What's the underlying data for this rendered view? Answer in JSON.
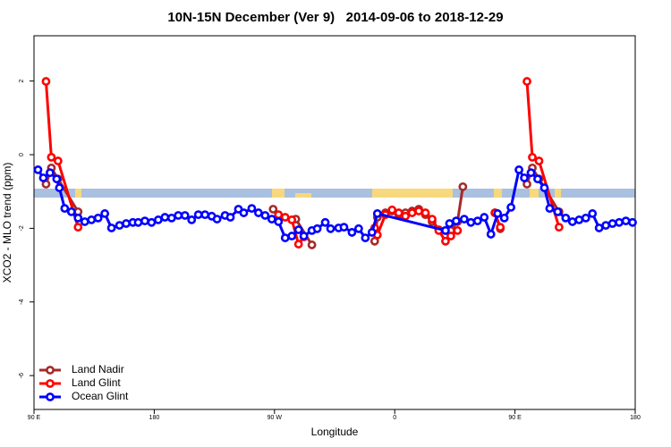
{
  "chart_data": {
    "type": "line",
    "title": "10N-15N December (Ver 9)   2014-09-06 to 2018-12-29",
    "x_label": "Longitude",
    "y_label": "XCO2 - MLO trend (ppm)",
    "xlim": [
      90,
      540
    ],
    "ylim": [
      -6.92,
      3.23
    ],
    "xticks": [
      {
        "value": 90,
        "label": "90 E"
      },
      180,
      {
        "value": 270,
        "label": "90 W"
      },
      {
        "value": 360,
        "label": "0"
      },
      {
        "value": 450,
        "label": "90 E"
      },
      {
        "value": 540,
        "label": "180"
      }
    ],
    "yticks": [
      -6,
      -4,
      -2,
      0,
      2
    ],
    "legend": "bottomleft",
    "series": [
      {
        "name": "Land Nadir",
        "color": "#a52a2a",
        "x": [
          99,
          103,
          108,
          123,
          null,
          269,
          273,
          286,
          298,
          null,
          345,
          347,
          353,
          358,
          363,
          368,
          373,
          378,
          383,
          388,
          393,
          398,
          402,
          407,
          411,
          null,
          435,
          439,
          null,
          459,
          463,
          468,
          483
        ],
        "values": [
          -0.8,
          -0.36,
          -0.66,
          -1.55,
          null,
          -1.48,
          -1.72,
          -1.75,
          -2.45,
          null,
          -2.35,
          -1.7,
          -1.58,
          -1.53,
          -1.63,
          -1.58,
          -1.53,
          -1.48,
          -1.63,
          -1.82,
          -2.04,
          -2.06,
          -2.06,
          -1.82,
          -0.87,
          null,
          -1.58,
          -2.01,
          null,
          -0.8,
          -0.36,
          -0.66,
          -1.55
        ]
      },
      {
        "name": "Land Glint",
        "color": "#ff0000",
        "x": [
          99,
          103,
          108,
          123,
          null,
          273,
          278,
          283,
          288,
          292,
          null,
          345,
          347,
          353,
          358,
          363,
          368,
          373,
          378,
          383,
          388,
          393,
          398,
          402,
          407,
          null,
          435,
          439,
          null,
          459,
          463,
          468,
          483
        ],
        "values": [
          1.99,
          -0.07,
          -0.17,
          -1.97,
          null,
          -1.63,
          -1.7,
          -1.77,
          -2.43,
          -2.23,
          null,
          -1.99,
          -2.18,
          -1.63,
          -1.5,
          -1.58,
          -1.67,
          -1.58,
          -1.53,
          -1.58,
          -1.75,
          -2.06,
          -2.35,
          -2.21,
          -2.06,
          null,
          -1.58,
          -1.97,
          null,
          1.99,
          -0.07,
          -0.17,
          -1.97
        ]
      },
      {
        "name": "Ocean Glint",
        "color": "#0000ff",
        "x": [
          93,
          97,
          102,
          107,
          109,
          113,
          118,
          123,
          128,
          133,
          138,
          143,
          148,
          154,
          159,
          164,
          168,
          173,
          178,
          183,
          188,
          193,
          198,
          203,
          208,
          213,
          218,
          223,
          227,
          233,
          237,
          243,
          247,
          253,
          258,
          263,
          268,
          273,
          278,
          283,
          288,
          292,
          298,
          302,
          308,
          312,
          318,
          322,
          328,
          333,
          338,
          343,
          347,
          398,
          401,
          406,
          412,
          417,
          422,
          427,
          432,
          437,
          442,
          447,
          453,
          457,
          462,
          467,
          472,
          476,
          482,
          488,
          493,
          498,
          503,
          508,
          513,
          518,
          523,
          528,
          533,
          538
        ],
        "values": [
          -0.41,
          -0.63,
          -0.49,
          -0.66,
          -0.9,
          -1.46,
          -1.55,
          -1.72,
          -1.82,
          -1.77,
          -1.72,
          -1.6,
          -1.99,
          -1.92,
          -1.87,
          -1.84,
          -1.84,
          -1.8,
          -1.84,
          -1.77,
          -1.7,
          -1.72,
          -1.65,
          -1.65,
          -1.77,
          -1.63,
          -1.63,
          -1.67,
          -1.75,
          -1.65,
          -1.7,
          -1.48,
          -1.58,
          -1.46,
          -1.58,
          -1.65,
          -1.75,
          -1.82,
          -2.26,
          -2.21,
          -2.04,
          -2.21,
          -2.06,
          -2.01,
          -1.84,
          -2.01,
          -1.99,
          -1.97,
          -2.11,
          -2.01,
          -2.26,
          -2.11,
          -1.6,
          -2.06,
          -1.87,
          -1.8,
          -1.75,
          -1.84,
          -1.8,
          -1.7,
          -2.16,
          -1.6,
          -1.72,
          -1.43,
          -0.41,
          -0.63,
          -0.49,
          -0.66,
          -0.9,
          -1.46,
          -1.55,
          -1.72,
          -1.82,
          -1.77,
          -1.72,
          -1.6,
          -1.99,
          -1.92,
          -1.87,
          -1.84,
          -1.8,
          -1.84
        ]
      }
    ]
  }
}
